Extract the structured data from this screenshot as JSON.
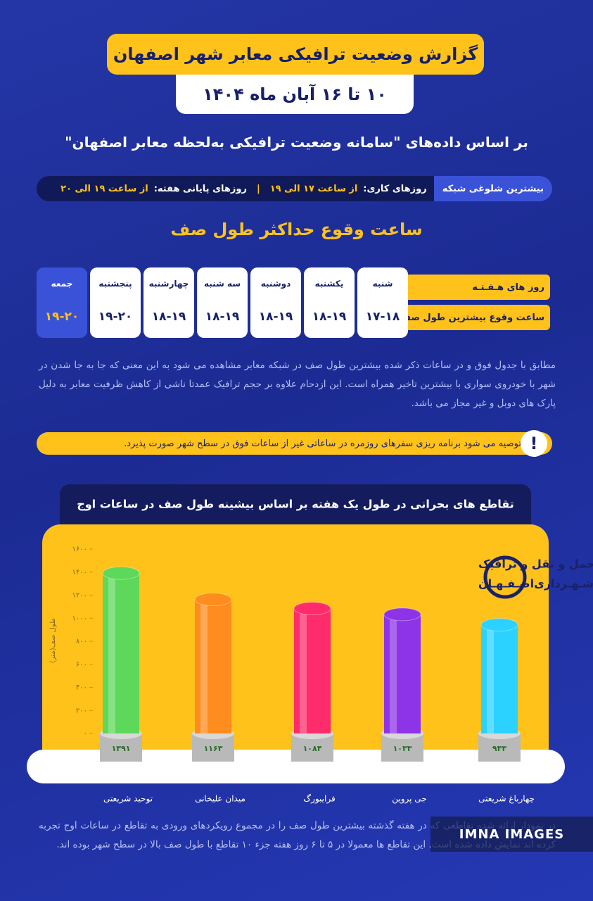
{
  "header": {
    "title": "گزارش وضعیت ترافیکی معابر شهر اصفهان",
    "date": "۱۰ تا ۱۶ آبان ماه ۱۴۰۴",
    "source": "بر اساس داده‌های \"سامانه وضعیت ترافیکی به‌لحظه معابر اصفهان\""
  },
  "peak": {
    "label": "بیشترین شلوغی شبکه",
    "weekdays_label": "روزهای کاری:",
    "weekdays_hours": "از ساعت ۱۷ الی ۱۹",
    "weekend_label": "روزهای پایانی هفته:",
    "weekend_hours": "از ساعت ۱۹ الی ۲۰"
  },
  "table": {
    "title": "ساعت وقوع حداکثر طول صف",
    "row_headers": [
      "روز های هـفـتـه",
      "ساعت وقوع بیشترین طول صف"
    ],
    "days": [
      "شنبه",
      "یکشنبه",
      "دوشنبه",
      "سه شنبه",
      "چهارشنبه",
      "پنجشنبه",
      "جمعه"
    ],
    "hours": [
      "۱۷-۱۸",
      "۱۸-۱۹",
      "۱۸-۱۹",
      "۱۸-۱۹",
      "۱۸-۱۹",
      "۱۹-۲۰",
      "۱۹-۲۰"
    ]
  },
  "note": "مطابق با جدول فوق و در ساعات ذکر شده بیشترین طول صف در شبکه معابر مشاهده می شود به این معنی که جا به جا شدن در شهر با خودروی سواری با بیشترین تاخیر همراه است. این ازدحام علاوه بر حجم ترافیک عمدتا ناشی از کاهش ظرفیت معابر به دلیل پارک های دوبل و غیر مجاز می باشد.",
  "warning": {
    "icon": "!",
    "text": "توصیه می شود برنامه ریزی سفرهای روزمره در ساعاتی غیر از ساعات فوق در سطح شهر صورت پذیرد."
  },
  "chart_data": {
    "type": "bar",
    "title": "تقاطع های بحرانی در طول یک هفته بر اساس بیشینه طول صف در ساعات اوج",
    "y_label": "طول صف(متر)",
    "categories": [
      "توحید شریعتی",
      "میدان علیخانی",
      "فرایبورگ",
      "جی پروین",
      "چهارباغ شریعتی"
    ],
    "values": [
      1391,
      1163,
      1084,
      1033,
      943
    ],
    "value_labels": [
      "۱۳۹۱",
      "۱۱۶۳",
      "۱۰۸۴",
      "۱۰۳۳",
      "۹۴۳"
    ],
    "colors": [
      "#5ed85a",
      "#ff8c1e",
      "#ff2c6c",
      "#8e34e8",
      "#2cd2ff"
    ],
    "ylim": [
      0,
      1600
    ],
    "yticks": [
      {
        "value": 0,
        "label": "۰"
      },
      {
        "value": 200,
        "label": "۲۰۰"
      },
      {
        "value": 400,
        "label": "۴۰۰"
      },
      {
        "value": 600,
        "label": "۶۰۰"
      },
      {
        "value": 800,
        "label": "۸۰۰"
      },
      {
        "value": 1000,
        "label": "۱۰۰۰"
      },
      {
        "value": 1200,
        "label": "۱۲۰۰"
      },
      {
        "value": 1400,
        "label": "۱۴۰۰"
      },
      {
        "value": 1600,
        "label": "۱۶۰۰"
      }
    ]
  },
  "logo": {
    "line1": "معاونت حمل و نقل و ترافیک",
    "line2": "شـهـرداری‌اصـفـهـان"
  },
  "footer": "در نمودار ارائه شده تقاطعی که در هفته گذشته بیشترین طول صف را در مجموع رویکردهای ورودی به تقاطع در ساعات اوج تجربه کرده اند نمایش داده شده است. این تقاطع ها معمولا در ۵ تا ۶ روز هفته جزء ۱۰ تقاطع با طول صف بالا در سطح شهر بوده اند.",
  "watermark": "IMNA IMAGES"
}
